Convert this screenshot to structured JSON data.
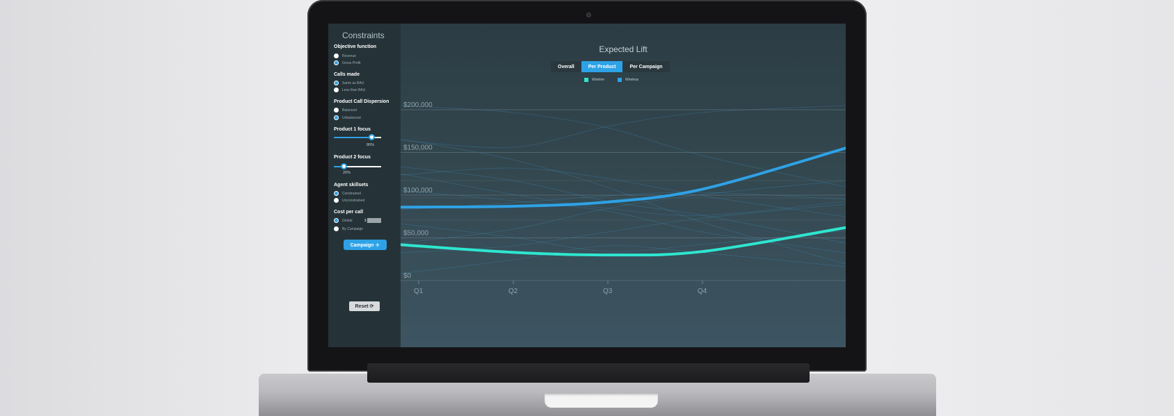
{
  "sidebar": {
    "title": "Constraints",
    "sections": [
      {
        "title": "Objective function",
        "options": [
          {
            "label": "Revenue",
            "checked": false
          },
          {
            "label": "Gross Profit",
            "checked": true
          }
        ]
      },
      {
        "title": "Calls made",
        "options": [
          {
            "label": "Same as BAU",
            "checked": true
          },
          {
            "label": "Less than BAU",
            "checked": false
          }
        ]
      },
      {
        "title": "Product Call Dispersion",
        "options": [
          {
            "label": "Balanced",
            "checked": false
          },
          {
            "label": "Unbalanced",
            "checked": true
          }
        ]
      },
      {
        "title": "Product 1 focus"
      },
      {
        "title": "Product 2 focus"
      },
      {
        "title": "Agent skillsets",
        "options": [
          {
            "label": "Constrained",
            "checked": true
          },
          {
            "label": "Unconstrained",
            "checked": false
          }
        ]
      },
      {
        "title": "Cost per call",
        "options": [
          {
            "label": "Global",
            "checked": true
          },
          {
            "label": "By Campaign",
            "checked": false
          }
        ]
      }
    ],
    "sliders": [
      {
        "value_label": "80%",
        "value": 0.8
      },
      {
        "value_label": "20%",
        "value": 0.2
      }
    ],
    "cost_currency": "$",
    "campaign_button": "Campaign ＋",
    "reset_button": "Reset ⟳"
  },
  "main": {
    "title": "Expected Lift",
    "tabs": [
      {
        "label": "Overall",
        "active": false
      },
      {
        "label": "Per Product",
        "active": true
      },
      {
        "label": "Per Campaign",
        "active": false
      }
    ]
  },
  "colors": {
    "accent": "#2ea2e6",
    "wireline": "#2ee6d0",
    "wireless": "#2ea2e6"
  },
  "chart_data": {
    "type": "line",
    "title": "Expected Lift",
    "x": [
      "Q1",
      "Q2",
      "Q3",
      "Q4",
      ""
    ],
    "yticks": [
      "$0",
      "$50,000",
      "$100,000",
      "$150,000",
      "$200,000"
    ],
    "ylim": [
      0,
      200000
    ],
    "legend_position": "top-center",
    "grid": true,
    "series": [
      {
        "name": "Wireline",
        "color": "#2ee6d0",
        "values": [
          42000,
          33000,
          30000,
          34000,
          62000
        ]
      },
      {
        "name": "Wireless",
        "color": "#2ea2e6",
        "values": [
          86000,
          87000,
          92000,
          107000,
          155000
        ]
      }
    ]
  }
}
